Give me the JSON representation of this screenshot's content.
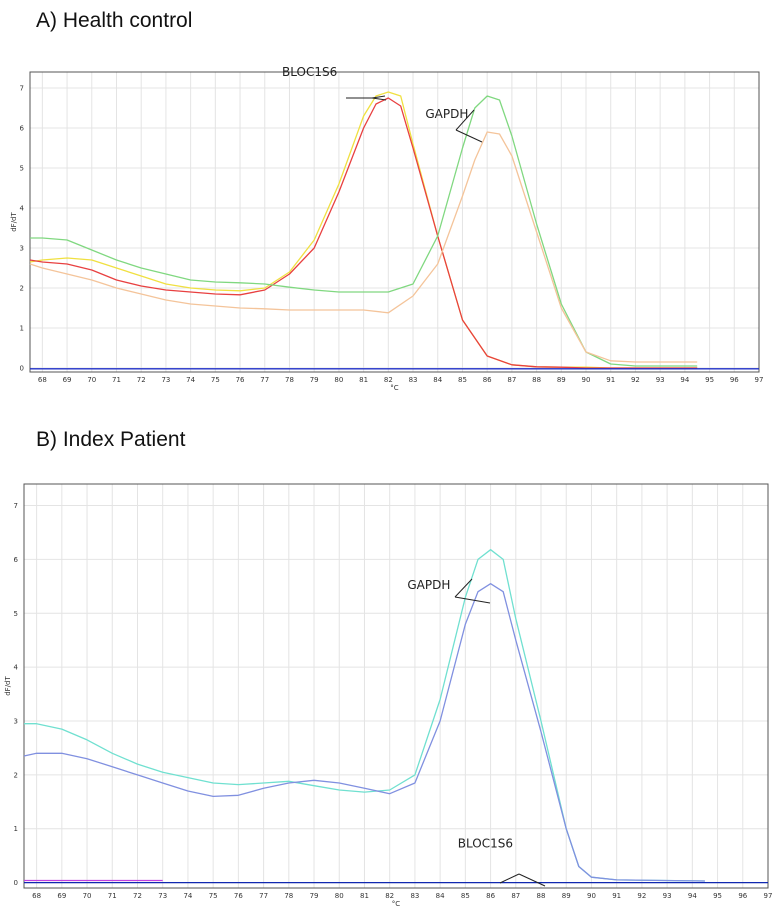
{
  "panels": {
    "a_title": "A) Health control",
    "b_title": "B) Index Patient"
  },
  "chart_data": [
    {
      "type": "line",
      "title": "A) Health control",
      "xlabel": "°C",
      "ylabel": "dF/dT",
      "xlim": [
        67.5,
        97
      ],
      "ylim": [
        -0.1,
        7.4
      ],
      "x_ticks": [
        "68",
        "69",
        "70",
        "71",
        "72",
        "73",
        "74",
        "75",
        "76",
        "77",
        "78",
        "79",
        "80",
        "81",
        "82",
        "83",
        "84",
        "85",
        "86",
        "87",
        "88",
        "89",
        "90",
        "91",
        "92",
        "93",
        "94",
        "95",
        "96",
        "97"
      ],
      "y_ticks": [
        "0",
        "1",
        "2",
        "3",
        "4",
        "5",
        "6",
        "7"
      ],
      "grid": true,
      "annotations": [
        {
          "text": "BLOC1S6",
          "x": 77.7,
          "y": 7.3
        },
        {
          "text": "GAPDH",
          "x": 83.5,
          "y": 6.25
        }
      ],
      "series": [
        {
          "color": "#f0e040",
          "points": [
            [
              67.5,
              2.65
            ],
            [
              68,
              2.7
            ],
            [
              69,
              2.75
            ],
            [
              70,
              2.7
            ],
            [
              71,
              2.5
            ],
            [
              72,
              2.3
            ],
            [
              73,
              2.1
            ],
            [
              74,
              2.0
            ],
            [
              75,
              1.95
            ],
            [
              76,
              1.93
            ],
            [
              77,
              2.0
            ],
            [
              78,
              2.4
            ],
            [
              79,
              3.2
            ],
            [
              80,
              4.6
            ],
            [
              81,
              6.3
            ],
            [
              81.5,
              6.8
            ],
            [
              82,
              6.9
            ],
            [
              82.5,
              6.8
            ],
            [
              83,
              5.6
            ],
            [
              84,
              3.3
            ],
            [
              85,
              1.2
            ],
            [
              86,
              0.3
            ],
            [
              87,
              0.08
            ],
            [
              88,
              0.03
            ],
            [
              89,
              0.02
            ],
            [
              90,
              0.02
            ],
            [
              91,
              0.0
            ],
            [
              94.5,
              0.0
            ]
          ]
        },
        {
          "color": "#e84040",
          "points": [
            [
              67.5,
              2.7
            ],
            [
              68,
              2.65
            ],
            [
              69,
              2.6
            ],
            [
              70,
              2.45
            ],
            [
              71,
              2.2
            ],
            [
              72,
              2.05
            ],
            [
              73,
              1.95
            ],
            [
              74,
              1.9
            ],
            [
              75,
              1.85
            ],
            [
              76,
              1.83
            ],
            [
              77,
              1.95
            ],
            [
              78,
              2.35
            ],
            [
              79,
              3.0
            ],
            [
              80,
              4.4
            ],
            [
              81,
              6.0
            ],
            [
              81.5,
              6.6
            ],
            [
              82,
              6.75
            ],
            [
              82.5,
              6.55
            ],
            [
              83,
              5.5
            ],
            [
              84,
              3.3
            ],
            [
              85,
              1.2
            ],
            [
              86,
              0.3
            ],
            [
              87,
              0.08
            ],
            [
              88,
              0.03
            ],
            [
              89,
              0.02
            ],
            [
              90,
              0.0
            ],
            [
              94.5,
              0.0
            ]
          ]
        },
        {
          "color": "#80d880",
          "points": [
            [
              67.5,
              3.25
            ],
            [
              68,
              3.25
            ],
            [
              69,
              3.2
            ],
            [
              70,
              2.95
            ],
            [
              71,
              2.7
            ],
            [
              72,
              2.5
            ],
            [
              73,
              2.35
            ],
            [
              74,
              2.2
            ],
            [
              75,
              2.15
            ],
            [
              76,
              2.13
            ],
            [
              77,
              2.1
            ],
            [
              78,
              2.02
            ],
            [
              79,
              1.95
            ],
            [
              80,
              1.9
            ],
            [
              81,
              1.9
            ],
            [
              82,
              1.9
            ],
            [
              83,
              2.1
            ],
            [
              84,
              3.3
            ],
            [
              85,
              5.5
            ],
            [
              85.5,
              6.5
            ],
            [
              86,
              6.8
            ],
            [
              86.5,
              6.7
            ],
            [
              87,
              5.8
            ],
            [
              88,
              3.6
            ],
            [
              89,
              1.6
            ],
            [
              90,
              0.4
            ],
            [
              91,
              0.1
            ],
            [
              92,
              0.05
            ],
            [
              94.5,
              0.05
            ]
          ]
        },
        {
          "color": "#f4c49a",
          "points": [
            [
              67.5,
              2.6
            ],
            [
              68,
              2.5
            ],
            [
              69,
              2.35
            ],
            [
              70,
              2.2
            ],
            [
              71,
              2.0
            ],
            [
              72,
              1.85
            ],
            [
              73,
              1.7
            ],
            [
              74,
              1.6
            ],
            [
              75,
              1.55
            ],
            [
              76,
              1.5
            ],
            [
              77,
              1.48
            ],
            [
              78,
              1.45
            ],
            [
              79,
              1.45
            ],
            [
              80,
              1.45
            ],
            [
              81,
              1.45
            ],
            [
              82,
              1.38
            ],
            [
              83,
              1.8
            ],
            [
              84,
              2.6
            ],
            [
              85,
              4.3
            ],
            [
              85.5,
              5.2
            ],
            [
              86,
              5.9
            ],
            [
              86.5,
              5.85
            ],
            [
              87,
              5.3
            ],
            [
              88,
              3.4
            ],
            [
              89,
              1.5
            ],
            [
              90,
              0.4
            ],
            [
              91,
              0.18
            ],
            [
              92,
              0.15
            ],
            [
              94.5,
              0.15
            ]
          ]
        },
        {
          "color": "#2030c8",
          "points": [
            [
              67.5,
              -0.02
            ],
            [
              97,
              -0.02
            ]
          ]
        }
      ]
    },
    {
      "type": "line",
      "title": "B) Index Patient",
      "xlabel": "°C",
      "ylabel": "dF/dT",
      "xlim": [
        67.5,
        97
      ],
      "ylim": [
        -0.1,
        7.4
      ],
      "x_ticks": [
        "68",
        "69",
        "70",
        "71",
        "72",
        "73",
        "74",
        "75",
        "76",
        "77",
        "78",
        "79",
        "80",
        "81",
        "82",
        "83",
        "84",
        "85",
        "86",
        "87",
        "88",
        "89",
        "90",
        "91",
        "92",
        "93",
        "94",
        "95",
        "96",
        "97"
      ],
      "y_ticks": [
        "0",
        "1",
        "2",
        "3",
        "4",
        "5",
        "6",
        "7"
      ],
      "grid": true,
      "annotations": [
        {
          "text": "GAPDH",
          "x": 82.7,
          "y": 5.45
        },
        {
          "text": "BLOC1S6",
          "x": 84.7,
          "y": 0.65
        }
      ],
      "series": [
        {
          "color": "#70e0d0",
          "points": [
            [
              67.5,
              2.95
            ],
            [
              68,
              2.95
            ],
            [
              69,
              2.85
            ],
            [
              70,
              2.65
            ],
            [
              71,
              2.4
            ],
            [
              72,
              2.2
            ],
            [
              73,
              2.05
            ],
            [
              74,
              1.95
            ],
            [
              75,
              1.85
            ],
            [
              76,
              1.82
            ],
            [
              77,
              1.85
            ],
            [
              78,
              1.88
            ],
            [
              79,
              1.8
            ],
            [
              80,
              1.72
            ],
            [
              81,
              1.68
            ],
            [
              82,
              1.72
            ],
            [
              83,
              2.0
            ],
            [
              84,
              3.4
            ],
            [
              85,
              5.3
            ],
            [
              85.5,
              6.0
            ],
            [
              86,
              6.18
            ],
            [
              86.5,
              6.0
            ],
            [
              87,
              4.9
            ],
            [
              88,
              3.0
            ],
            [
              89,
              1.0
            ],
            [
              89.5,
              0.3
            ],
            [
              90,
              0.1
            ],
            [
              91,
              0.05
            ],
            [
              94.5,
              0.03
            ]
          ]
        },
        {
          "color": "#8090e0",
          "points": [
            [
              67.5,
              2.35
            ],
            [
              68,
              2.4
            ],
            [
              69,
              2.4
            ],
            [
              70,
              2.3
            ],
            [
              71,
              2.15
            ],
            [
              72,
              2.0
            ],
            [
              73,
              1.85
            ],
            [
              74,
              1.7
            ],
            [
              75,
              1.6
            ],
            [
              76,
              1.62
            ],
            [
              77,
              1.75
            ],
            [
              78,
              1.85
            ],
            [
              79,
              1.9
            ],
            [
              80,
              1.85
            ],
            [
              81,
              1.75
            ],
            [
              82,
              1.65
            ],
            [
              83,
              1.85
            ],
            [
              84,
              3.0
            ],
            [
              85,
              4.8
            ],
            [
              85.5,
              5.4
            ],
            [
              86,
              5.55
            ],
            [
              86.5,
              5.4
            ],
            [
              87,
              4.5
            ],
            [
              88,
              2.8
            ],
            [
              89,
              1.0
            ],
            [
              89.5,
              0.3
            ],
            [
              90,
              0.1
            ],
            [
              91,
              0.05
            ],
            [
              94.5,
              0.03
            ]
          ]
        },
        {
          "color": "#c040e0",
          "points": [
            [
              67.5,
              0.04
            ],
            [
              73,
              0.04
            ]
          ]
        },
        {
          "color": "#1028b0",
          "points": [
            [
              67.5,
              0.0
            ],
            [
              97,
              0.0
            ]
          ]
        }
      ]
    }
  ]
}
